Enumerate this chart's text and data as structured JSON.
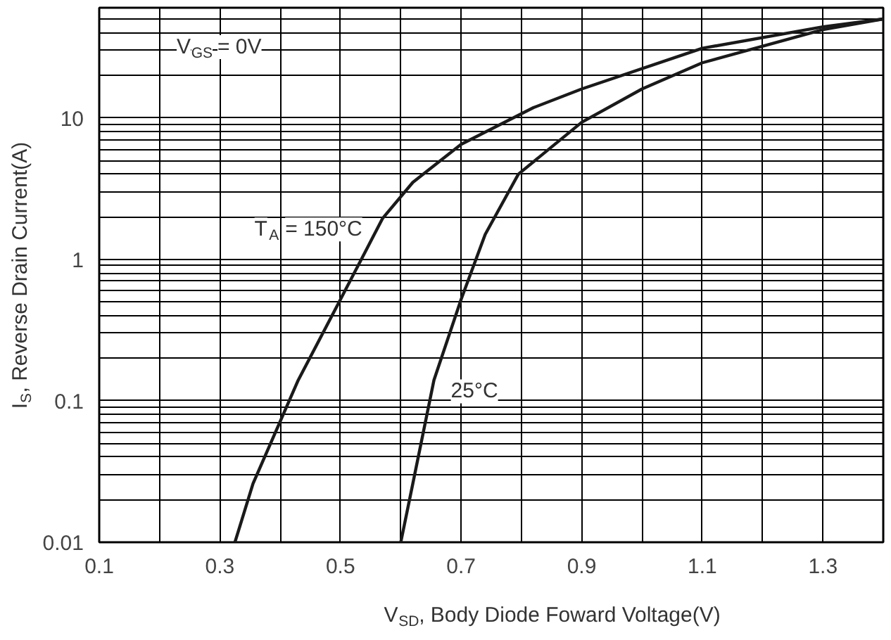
{
  "chart_data": {
    "type": "line",
    "xlabel": "V$_{SD}$, Body Diode Foward Voltage(V)",
    "ylabel": "I$_{S}$, Reverse Drain Current(A)",
    "log": "y",
    "xlim": [
      0.1,
      1.4
    ],
    "ylim": [
      0.01,
      60
    ],
    "xticks": [
      0.1,
      0.3,
      0.5,
      0.7,
      0.9,
      1.1,
      1.3
    ],
    "yticks": [
      0.01,
      0.1,
      1,
      10
    ],
    "grid": true,
    "marker": "none",
    "line_style": "solid",
    "series": [
      {
        "name": "T$_{A}$ = 150°C",
        "color": "#1a1a1a",
        "x": [
          0.325,
          0.355,
          0.43,
          0.5,
          0.57,
          0.62,
          0.7,
          0.82,
          0.9,
          1.1,
          1.3,
          1.4
        ],
        "values": [
          0.01,
          0.026,
          0.14,
          0.52,
          1.95,
          3.5,
          6.5,
          11.8,
          16,
          31,
          44,
          50
        ]
      },
      {
        "name": "25°C",
        "color": "#1a1a1a",
        "x": [
          0.6,
          0.62,
          0.655,
          0.7,
          0.74,
          0.795,
          0.9,
          1.0,
          1.1,
          1.3,
          1.4
        ],
        "values": [
          0.01,
          0.026,
          0.14,
          0.52,
          1.5,
          4,
          9.3,
          16,
          24.5,
          42,
          50
        ]
      }
    ],
    "annotations": [
      "V$_{GS}$ = 0V"
    ]
  }
}
